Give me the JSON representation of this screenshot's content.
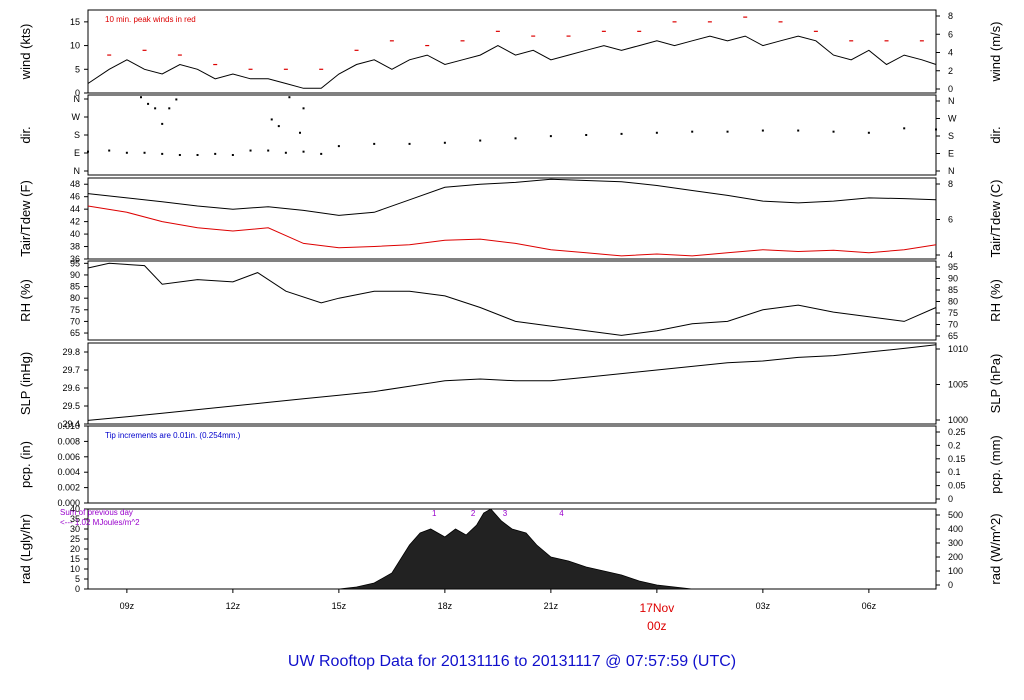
{
  "title": "UW Rooftop Data for 20131116  to  20131117 @ 07:57:59  (UTC)",
  "colors": {
    "title": "#1010cc",
    "accent": "#dd0000",
    "note_blue": "#0000cc",
    "note_purple": "#9900cc",
    "line": "#000000"
  },
  "chart_data": {
    "type": "line",
    "x_ticks": [
      "09z",
      "12z",
      "15z",
      "18z",
      "21z",
      "03z",
      "06z"
    ],
    "x_date_marker": {
      "date": "17Nov",
      "time": "00z"
    },
    "x_range_hours": [
      7.9,
      31.9
    ],
    "panels": [
      {
        "id": "wind",
        "ylabel_left": "wind (kts)",
        "ylabel_right": "wind (m/s)",
        "left_ticks": [
          "0",
          "5",
          "10",
          "15"
        ],
        "left_range": [
          0,
          17.5
        ],
        "right_ticks": [
          "0",
          "2",
          "4",
          "6",
          "8"
        ],
        "annotation": "10 min. peak winds in red",
        "series": [
          {
            "x": [
              7.9,
              8.5,
              9.0,
              9.5,
              10.0,
              10.5,
              11.0,
              11.5,
              12.0,
              12.5,
              13.0,
              13.5,
              14.0,
              14.5,
              15.0,
              15.5,
              16.0,
              16.5,
              17.0,
              17.5,
              18.0,
              18.5,
              19.0,
              19.5,
              20.0,
              20.5,
              21.0,
              21.5,
              22.0,
              22.5,
              23.0,
              23.5,
              24.0,
              24.5,
              25.0,
              25.5,
              26.0,
              26.5,
              27.0,
              27.5,
              28.0,
              28.5,
              29.0,
              29.5,
              30.0,
              30.5,
              31.0,
              31.5,
              31.9
            ],
            "y": [
              2,
              5,
              7,
              5,
              4,
              6,
              5,
              3,
              4,
              3,
              3,
              2,
              1,
              1,
              4,
              6,
              7,
              5,
              7,
              8,
              6,
              7,
              8,
              10,
              8,
              9,
              7,
              8,
              9,
              10,
              9,
              10,
              11,
              10,
              11,
              12,
              11,
              12,
              10,
              11,
              12,
              11,
              8,
              7,
              9,
              6,
              8,
              7,
              6
            ]
          }
        ],
        "peak_winds": {
          "x": [
            8.5,
            9.5,
            10.5,
            11.5,
            12.5,
            13.5,
            14.5,
            15.5,
            16.5,
            17.5,
            18.5,
            19.5,
            20.5,
            21.5,
            22.5,
            23.5,
            24.5,
            25.5,
            26.5,
            27.5,
            28.5,
            29.5,
            30.5,
            31.5
          ],
          "y": [
            8,
            9,
            8,
            6,
            5,
            5,
            5,
            9,
            11,
            10,
            11,
            13,
            12,
            12,
            13,
            13,
            15,
            15,
            16,
            15,
            13,
            11,
            11,
            11
          ]
        }
      },
      {
        "id": "dir",
        "ylabel_left": "dir.",
        "ylabel_right": "dir.",
        "left_ticks": [
          "N",
          "E",
          "S",
          "W",
          "N"
        ],
        "left_range": [
          0,
          360
        ],
        "right_ticks": [
          "N",
          "E",
          "S",
          "W",
          "N"
        ],
        "series": [
          {
            "x": [
              7.9,
              8.5,
              9.0,
              9.5,
              10.0,
              10.5,
              11.0,
              11.5,
              12.0,
              12.5,
              13.0,
              13.5,
              14.0,
              14.5,
              15.0,
              16.0,
              17.0,
              18.0,
              19.0,
              20.0,
              21.0,
              22.0,
              23.0,
              24.0,
              25.0,
              26.0,
              27.0,
              28.0,
              29.0,
              30.0,
              31.0,
              31.9
            ],
            "y": [
              105,
              110,
              100,
              100,
              95,
              90,
              90,
              95,
              90,
              110,
              110,
              100,
              105,
              95,
              130,
              140,
              140,
              145,
              155,
              165,
              175,
              180,
              185,
              190,
              195,
              195,
              200,
              200,
              195,
              190,
              210,
              205
            ]
          }
        ],
        "scatter_outliers": {
          "x": [
            9.4,
            9.6,
            9.8,
            10.0,
            10.2,
            10.4,
            13.1,
            13.3,
            13.6,
            13.9,
            14.0
          ],
          "y": [
            350,
            320,
            300,
            230,
            300,
            340,
            250,
            220,
            350,
            190,
            300
          ]
        }
      },
      {
        "id": "temp",
        "ylabel_left": "Tair/Tdew (F)",
        "ylabel_right": "Tair/Tdew (C)",
        "left_ticks": [
          "36",
          "38",
          "40",
          "42",
          "44",
          "46",
          "48"
        ],
        "left_range": [
          36,
          49
        ],
        "right_ticks": [
          "4",
          "6",
          "8"
        ],
        "series": [
          {
            "name": "Tair",
            "x": [
              7.9,
              9,
              10,
              11,
              12,
              13,
              14,
              15,
              16,
              17,
              18,
              19,
              20,
              21,
              22,
              23,
              24,
              25,
              26,
              27,
              28,
              29,
              30,
              31,
              31.9
            ],
            "y": [
              46.5,
              45.8,
              45.2,
              44.5,
              44,
              44.4,
              43.8,
              43,
              43.5,
              45.5,
              47.5,
              48,
              48.3,
              48.8,
              48.6,
              48.4,
              47.8,
              47,
              46.2,
              45.3,
              45,
              45.3,
              45.8,
              45.7,
              45.5
            ]
          },
          {
            "name": "Tdew",
            "x": [
              7.9,
              9,
              10,
              11,
              12,
              13,
              14,
              15,
              16,
              17,
              18,
              19,
              20,
              21,
              22,
              23,
              24,
              25,
              26,
              27,
              28,
              29,
              30,
              31,
              31.9
            ],
            "y": [
              44.5,
              43.5,
              42,
              41,
              40.5,
              41,
              38.5,
              37.8,
              38,
              38.3,
              39,
              39.2,
              38.5,
              37.5,
              37,
              36.5,
              36.8,
              36.5,
              37,
              37.5,
              37.2,
              37.4,
              37,
              37.5,
              38.3
            ]
          }
        ]
      },
      {
        "id": "rh",
        "ylabel_left": "RH (%)",
        "ylabel_right": "RH (%)",
        "left_ticks": [
          "65",
          "70",
          "75",
          "80",
          "85",
          "90",
          "95"
        ],
        "left_range": [
          62,
          96
        ],
        "right_ticks": [
          "65",
          "70",
          "75",
          "80",
          "85",
          "90",
          "95"
        ],
        "series": [
          {
            "x": [
              7.9,
              8.5,
              9.5,
              10.0,
              11,
              12,
              12.7,
              13.5,
              14.5,
              15,
              16,
              17,
              18,
              19,
              20,
              21,
              22,
              23,
              24,
              25,
              26,
              27,
              28,
              29,
              30,
              31,
              31.9
            ],
            "y": [
              93,
              95,
              94,
              86,
              88,
              87,
              91,
              83,
              78,
              80,
              83,
              83,
              81,
              76,
              70,
              68,
              66,
              64,
              66,
              69,
              70,
              75,
              77,
              74,
              72,
              70,
              76
            ]
          }
        ]
      },
      {
        "id": "slp",
        "ylabel_left": "SLP (inHg)",
        "ylabel_right": "SLP (hPa)",
        "left_ticks": [
          "29.4",
          "29.5",
          "29.6",
          "29.7",
          "29.8"
        ],
        "left_range": [
          29.4,
          29.85
        ],
        "right_ticks": [
          "1000",
          "1005",
          "1010"
        ],
        "series": [
          {
            "x": [
              7.9,
              9,
              10,
              11,
              12,
              13,
              14,
              15,
              16,
              17,
              18,
              19,
              20,
              21,
              22,
              23,
              24,
              25,
              26,
              27,
              28,
              29,
              30,
              31,
              31.9
            ],
            "y": [
              29.42,
              29.44,
              29.46,
              29.48,
              29.5,
              29.52,
              29.54,
              29.56,
              29.58,
              29.61,
              29.64,
              29.65,
              29.64,
              29.64,
              29.66,
              29.68,
              29.7,
              29.72,
              29.74,
              29.75,
              29.77,
              29.78,
              29.8,
              29.82,
              29.84
            ]
          }
        ]
      },
      {
        "id": "pcp",
        "ylabel_left": "pcp. (in)",
        "ylabel_right": "pcp. (mm)",
        "left_ticks": [
          "0.000",
          "0.002",
          "0.004",
          "0.006",
          "0.008",
          "0.010"
        ],
        "left_range": [
          0,
          0.01
        ],
        "right_ticks": [
          "0",
          "0.05",
          "0.1",
          "0.15",
          "0.2",
          "0.25"
        ],
        "annotation": "Tip increments are 0.01in. (0.254mm.)",
        "series": [
          {
            "x": [
              7.9,
              31.9
            ],
            "y": [
              0,
              0
            ]
          }
        ]
      },
      {
        "id": "rad",
        "type": "area",
        "ylabel_left": "rad (Lgly/hr)",
        "ylabel_right": "rad (W/m^2)",
        "left_ticks": [
          "0",
          "5",
          "10",
          "15",
          "20",
          "25",
          "30",
          "35",
          "40"
        ],
        "left_range": [
          0,
          40
        ],
        "right_ticks": [
          "0",
          "100",
          "200",
          "300",
          "400",
          "500"
        ],
        "annotation_lines": [
          "Sum of previous day",
          "<--- 1.02 MJoules/m^2"
        ],
        "markers": [
          "1",
          "2",
          "3",
          "4"
        ],
        "marker_x": [
          17.7,
          18.8,
          19.7,
          21.3
        ],
        "series": [
          {
            "x": [
              15.0,
              15.5,
              16.0,
              16.5,
              17.0,
              17.3,
              17.6,
              18.0,
              18.3,
              18.6,
              18.9,
              19.1,
              19.3,
              19.6,
              19.9,
              20.3,
              20.6,
              21.0,
              21.5,
              22.0,
              22.5,
              23.0,
              23.5,
              24.0,
              24.5,
              25.0
            ],
            "y": [
              0,
              1,
              3,
              8,
              22,
              28,
              30,
              26,
              30,
              27,
              32,
              38,
              40,
              34,
              30,
              28,
              22,
              16,
              14,
              11,
              9,
              7,
              4,
              2,
              1,
              0
            ]
          }
        ]
      }
    ]
  }
}
